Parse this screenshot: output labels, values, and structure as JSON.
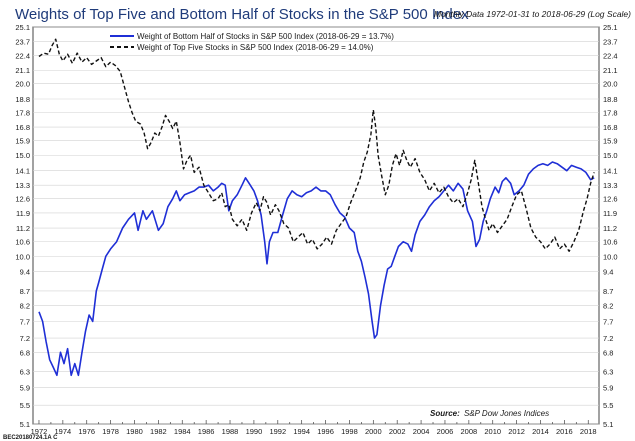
{
  "chart_data": {
    "type": "line",
    "title": "Weights of Top Five and Bottom Half of Stocks in the S&P 500 Index",
    "subtitle": "Monthly Data 1972-01-31 to 2018-06-29 (Log Scale)",
    "x_ticks": [
      "1972",
      "1974",
      "1976",
      "1978",
      "1980",
      "1982",
      "1984",
      "1986",
      "1988",
      "1990",
      "1992",
      "1994",
      "1996",
      "1998",
      "2000",
      "2002",
      "2004",
      "2006",
      "2008",
      "2010",
      "2012",
      "2014",
      "2016",
      "2018"
    ],
    "y_ticks": [
      "5.1",
      "5.5",
      "5.9",
      "6.3",
      "6.8",
      "7.2",
      "7.7",
      "8.2",
      "8.7",
      "9.4",
      "10.0",
      "10.6",
      "11.2",
      "11.9",
      "12.6",
      "13.3",
      "14.1",
      "15.0",
      "15.9",
      "16.8",
      "17.8",
      "18.8",
      "20.0",
      "21.1",
      "22.4",
      "23.7",
      "25.1"
    ],
    "yscale": "log",
    "xlim": [
      1971.5,
      2018.9
    ],
    "ylim": [
      5.1,
      25.1
    ],
    "legend_position": "top-left",
    "source_label": "Source:",
    "source_text": "S&P Dow Jones Indices",
    "footer_id": "BEC20180724.1A C",
    "series": [
      {
        "name": "Weight of Bottom Half of Stocks in S&P 500 Index (2018-06-29 = 13.7%)",
        "color": "#1f2fd6",
        "style": "solid",
        "points": [
          [
            1972.0,
            8.0
          ],
          [
            1972.3,
            7.7
          ],
          [
            1972.6,
            7.1
          ],
          [
            1972.9,
            6.6
          ],
          [
            1973.2,
            6.4
          ],
          [
            1973.5,
            6.2
          ],
          [
            1973.8,
            6.8
          ],
          [
            1974.1,
            6.5
          ],
          [
            1974.4,
            6.9
          ],
          [
            1974.7,
            6.2
          ],
          [
            1975.0,
            6.5
          ],
          [
            1975.3,
            6.2
          ],
          [
            1975.6,
            6.8
          ],
          [
            1975.9,
            7.4
          ],
          [
            1976.2,
            7.9
          ],
          [
            1976.5,
            7.7
          ],
          [
            1976.8,
            8.7
          ],
          [
            1977.0,
            9.0
          ],
          [
            1977.3,
            9.5
          ],
          [
            1977.6,
            10.0
          ],
          [
            1978.0,
            10.3
          ],
          [
            1978.5,
            10.6
          ],
          [
            1979.0,
            11.2
          ],
          [
            1979.5,
            11.6
          ],
          [
            1980.0,
            11.9
          ],
          [
            1980.3,
            11.1
          ],
          [
            1980.7,
            12.0
          ],
          [
            1981.0,
            11.6
          ],
          [
            1981.5,
            12.0
          ],
          [
            1982.0,
            11.1
          ],
          [
            1982.4,
            11.4
          ],
          [
            1982.8,
            12.2
          ],
          [
            1983.2,
            12.6
          ],
          [
            1983.5,
            13.0
          ],
          [
            1983.8,
            12.5
          ],
          [
            1984.2,
            12.8
          ],
          [
            1984.6,
            12.9
          ],
          [
            1985.0,
            13.0
          ],
          [
            1985.4,
            13.2
          ],
          [
            1985.8,
            13.2
          ],
          [
            1986.2,
            13.3
          ],
          [
            1986.6,
            13.0
          ],
          [
            1987.0,
            13.2
          ],
          [
            1987.3,
            13.4
          ],
          [
            1987.6,
            13.3
          ],
          [
            1987.9,
            12.0
          ],
          [
            1988.2,
            12.5
          ],
          [
            1988.6,
            12.8
          ],
          [
            1989.0,
            13.3
          ],
          [
            1989.3,
            13.7
          ],
          [
            1989.6,
            13.4
          ],
          [
            1990.0,
            13.0
          ],
          [
            1990.3,
            12.5
          ],
          [
            1990.6,
            11.8
          ],
          [
            1990.9,
            10.6
          ],
          [
            1991.1,
            9.7
          ],
          [
            1991.3,
            10.6
          ],
          [
            1991.6,
            11.0
          ],
          [
            1992.0,
            11.0
          ],
          [
            1992.4,
            11.8
          ],
          [
            1992.8,
            12.6
          ],
          [
            1993.2,
            13.0
          ],
          [
            1993.6,
            12.8
          ],
          [
            1994.0,
            12.7
          ],
          [
            1994.4,
            12.9
          ],
          [
            1994.8,
            13.0
          ],
          [
            1995.2,
            13.2
          ],
          [
            1995.6,
            13.0
          ],
          [
            1996.0,
            13.0
          ],
          [
            1996.4,
            12.8
          ],
          [
            1996.8,
            12.3
          ],
          [
            1997.2,
            11.9
          ],
          [
            1997.6,
            11.7
          ],
          [
            1998.0,
            11.2
          ],
          [
            1998.4,
            11.0
          ],
          [
            1998.7,
            10.2
          ],
          [
            1999.0,
            9.8
          ],
          [
            1999.3,
            9.2
          ],
          [
            1999.6,
            8.6
          ],
          [
            1999.9,
            7.7
          ],
          [
            2000.1,
            7.2
          ],
          [
            2000.3,
            7.3
          ],
          [
            2000.6,
            8.2
          ],
          [
            2000.9,
            8.9
          ],
          [
            2001.2,
            9.5
          ],
          [
            2001.5,
            9.6
          ],
          [
            2001.8,
            10.0
          ],
          [
            2002.1,
            10.4
          ],
          [
            2002.5,
            10.6
          ],
          [
            2002.9,
            10.5
          ],
          [
            2003.2,
            10.2
          ],
          [
            2003.5,
            10.9
          ],
          [
            2003.9,
            11.5
          ],
          [
            2004.3,
            11.8
          ],
          [
            2004.7,
            12.2
          ],
          [
            2005.1,
            12.5
          ],
          [
            2005.5,
            12.7
          ],
          [
            2005.9,
            13.0
          ],
          [
            2006.3,
            13.3
          ],
          [
            2006.7,
            13.0
          ],
          [
            2007.1,
            13.4
          ],
          [
            2007.5,
            13.1
          ],
          [
            2007.9,
            12.0
          ],
          [
            2008.3,
            11.5
          ],
          [
            2008.6,
            10.4
          ],
          [
            2008.9,
            10.7
          ],
          [
            2009.2,
            11.5
          ],
          [
            2009.5,
            12.0
          ],
          [
            2009.8,
            12.6
          ],
          [
            2010.2,
            13.2
          ],
          [
            2010.5,
            12.9
          ],
          [
            2010.8,
            13.5
          ],
          [
            2011.1,
            13.7
          ],
          [
            2011.5,
            13.4
          ],
          [
            2011.8,
            12.8
          ],
          [
            2012.2,
            13.0
          ],
          [
            2012.6,
            13.3
          ],
          [
            2013.0,
            13.9
          ],
          [
            2013.4,
            14.2
          ],
          [
            2013.8,
            14.4
          ],
          [
            2014.2,
            14.5
          ],
          [
            2014.6,
            14.4
          ],
          [
            2015.0,
            14.6
          ],
          [
            2015.4,
            14.5
          ],
          [
            2015.8,
            14.3
          ],
          [
            2016.2,
            14.1
          ],
          [
            2016.6,
            14.4
          ],
          [
            2017.0,
            14.3
          ],
          [
            2017.4,
            14.2
          ],
          [
            2017.8,
            14.0
          ],
          [
            2018.2,
            13.6
          ],
          [
            2018.5,
            13.7
          ]
        ]
      },
      {
        "name": "Weight of Top Five Stocks in S&P 500 Index (2018-06-29 = 14.0%)",
        "color": "#111111",
        "style": "dashed",
        "points": [
          [
            1972.0,
            22.3
          ],
          [
            1972.4,
            22.6
          ],
          [
            1972.8,
            22.5
          ],
          [
            1973.1,
            23.3
          ],
          [
            1973.4,
            23.9
          ],
          [
            1973.7,
            22.5
          ],
          [
            1974.0,
            21.9
          ],
          [
            1974.4,
            22.5
          ],
          [
            1974.8,
            21.7
          ],
          [
            1975.2,
            22.6
          ],
          [
            1975.6,
            21.8
          ],
          [
            1976.0,
            22.2
          ],
          [
            1976.4,
            21.6
          ],
          [
            1976.8,
            21.9
          ],
          [
            1977.2,
            22.2
          ],
          [
            1977.6,
            21.4
          ],
          [
            1978.0,
            21.8
          ],
          [
            1978.4,
            21.5
          ],
          [
            1978.8,
            21.0
          ],
          [
            1979.2,
            19.6
          ],
          [
            1979.5,
            18.6
          ],
          [
            1979.8,
            17.8
          ],
          [
            1980.1,
            17.2
          ],
          [
            1980.5,
            17.0
          ],
          [
            1980.8,
            16.4
          ],
          [
            1981.1,
            15.4
          ],
          [
            1981.4,
            15.8
          ],
          [
            1981.7,
            16.4
          ],
          [
            1982.0,
            16.2
          ],
          [
            1982.3,
            16.8
          ],
          [
            1982.6,
            17.6
          ],
          [
            1982.9,
            17.2
          ],
          [
            1983.2,
            16.7
          ],
          [
            1983.5,
            17.2
          ],
          [
            1983.8,
            15.8
          ],
          [
            1984.1,
            14.2
          ],
          [
            1984.4,
            14.7
          ],
          [
            1984.7,
            15.0
          ],
          [
            1985.0,
            14.0
          ],
          [
            1985.4,
            14.3
          ],
          [
            1985.8,
            13.3
          ],
          [
            1986.2,
            12.9
          ],
          [
            1986.6,
            12.5
          ],
          [
            1987.0,
            12.6
          ],
          [
            1987.3,
            12.9
          ],
          [
            1987.6,
            12.2
          ],
          [
            1987.9,
            12.3
          ],
          [
            1988.2,
            11.6
          ],
          [
            1988.6,
            11.3
          ],
          [
            1989.0,
            11.6
          ],
          [
            1989.4,
            11.1
          ],
          [
            1989.8,
            11.9
          ],
          [
            1990.2,
            12.4
          ],
          [
            1990.5,
            12.0
          ],
          [
            1990.8,
            12.7
          ],
          [
            1991.1,
            12.4
          ],
          [
            1991.4,
            11.8
          ],
          [
            1991.8,
            12.3
          ],
          [
            1992.1,
            12.0
          ],
          [
            1992.5,
            11.4
          ],
          [
            1992.9,
            11.2
          ],
          [
            1993.3,
            10.6
          ],
          [
            1993.7,
            10.8
          ],
          [
            1994.1,
            11.0
          ],
          [
            1994.5,
            10.5
          ],
          [
            1994.9,
            10.7
          ],
          [
            1995.3,
            10.3
          ],
          [
            1995.7,
            10.5
          ],
          [
            1996.1,
            10.8
          ],
          [
            1996.5,
            10.5
          ],
          [
            1996.9,
            11.1
          ],
          [
            1997.3,
            11.4
          ],
          [
            1997.7,
            11.7
          ],
          [
            1998.1,
            12.4
          ],
          [
            1998.5,
            13.0
          ],
          [
            1998.9,
            13.7
          ],
          [
            1999.2,
            14.6
          ],
          [
            1999.5,
            15.2
          ],
          [
            1999.8,
            16.3
          ],
          [
            2000.0,
            18.0
          ],
          [
            2000.2,
            16.8
          ],
          [
            2000.4,
            15.0
          ],
          [
            2000.7,
            13.8
          ],
          [
            2001.0,
            12.8
          ],
          [
            2001.3,
            13.3
          ],
          [
            2001.6,
            14.4
          ],
          [
            2001.9,
            15.1
          ],
          [
            2002.2,
            14.4
          ],
          [
            2002.5,
            15.3
          ],
          [
            2002.8,
            14.7
          ],
          [
            2003.1,
            14.3
          ],
          [
            2003.5,
            14.8
          ],
          [
            2003.9,
            14.0
          ],
          [
            2004.3,
            13.6
          ],
          [
            2004.7,
            13.0
          ],
          [
            2005.1,
            13.4
          ],
          [
            2005.5,
            12.9
          ],
          [
            2005.9,
            13.2
          ],
          [
            2006.3,
            12.7
          ],
          [
            2006.7,
            12.4
          ],
          [
            2007.1,
            12.6
          ],
          [
            2007.5,
            12.2
          ],
          [
            2007.9,
            12.9
          ],
          [
            2008.2,
            13.6
          ],
          [
            2008.5,
            14.7
          ],
          [
            2008.8,
            13.4
          ],
          [
            2009.1,
            12.2
          ],
          [
            2009.4,
            11.6
          ],
          [
            2009.7,
            11.1
          ],
          [
            2010.0,
            11.4
          ],
          [
            2010.4,
            11.0
          ],
          [
            2010.8,
            11.3
          ],
          [
            2011.2,
            11.6
          ],
          [
            2011.6,
            12.2
          ],
          [
            2012.0,
            12.8
          ],
          [
            2012.4,
            13.0
          ],
          [
            2012.8,
            12.1
          ],
          [
            2013.2,
            11.2
          ],
          [
            2013.6,
            10.8
          ],
          [
            2014.0,
            10.6
          ],
          [
            2014.4,
            10.3
          ],
          [
            2014.8,
            10.5
          ],
          [
            2015.2,
            10.8
          ],
          [
            2015.6,
            10.3
          ],
          [
            2016.0,
            10.5
          ],
          [
            2016.4,
            10.2
          ],
          [
            2016.8,
            10.6
          ],
          [
            2017.2,
            11.1
          ],
          [
            2017.6,
            12.0
          ],
          [
            2017.9,
            12.6
          ],
          [
            2018.2,
            13.4
          ],
          [
            2018.5,
            14.0
          ]
        ]
      }
    ]
  }
}
